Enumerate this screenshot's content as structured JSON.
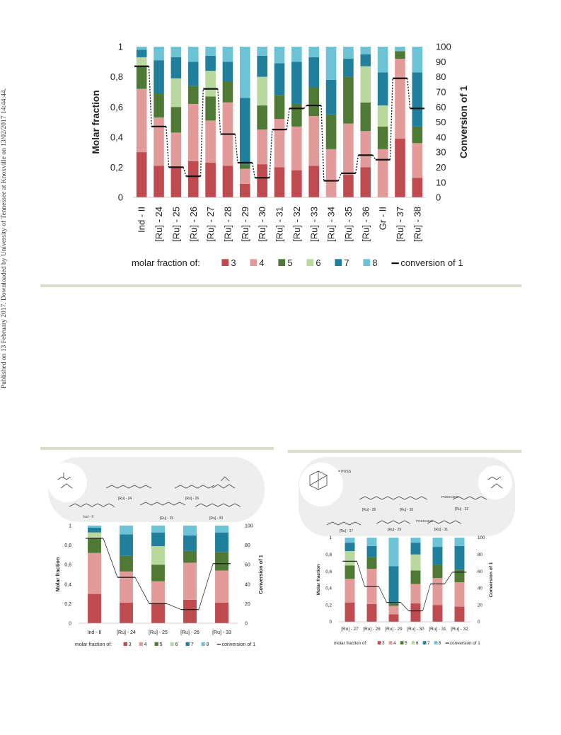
{
  "sidebar_text": "Published on 13 February 2017. Downloaded by University of Tennessee at Knoxville on 13/02/2017 14:44:44.",
  "colors": {
    "s3": "#bf4a4f",
    "s4": "#e39b99",
    "s5": "#4f7a35",
    "s6": "#b9d89e",
    "s7": "#1f7f9c",
    "s8": "#6cc3d6",
    "line": "#111111",
    "divider": "#dcdccd",
    "panel": "#eeeeee"
  },
  "inset_left": {
    "structure_labels": [
      "Ind - II",
      "[Ru] - 24",
      "[Ru] - 25",
      "[Ru] - 26",
      "[Ru] - 33"
    ]
  },
  "inset_right": {
    "structure_labels": [
      "[Ru] - 28",
      "[Ru] - 30",
      "[Ru] - 32",
      "[Ru] - 27",
      "[Ru] - 29",
      "[Ru] - 31"
    ],
    "poss_label": "= POSS",
    "poss_chain_1": "POSSC3H6",
    "poss_chain_2": "POSSC3H6"
  },
  "chart_data": [
    {
      "type": "bar",
      "stacked": true,
      "categories": [
        "Ind - II",
        "[Ru] - 24",
        "[Ru] - 25",
        "[Ru] - 26",
        "[Ru] - 27",
        "[Ru] - 28",
        "[Ru] - 29",
        "[Ru] - 30",
        "[Ru] - 31",
        "[Ru] - 32",
        "[Ru] - 33",
        "[Ru] - 34",
        "[Ru] - 35",
        "[Ru] - 36",
        "Gr - II",
        "[Ru] - 37",
        "[Ru] - 38"
      ],
      "series": [
        {
          "name": "3",
          "values": [
            0.3,
            0.21,
            0.2,
            0.24,
            0.23,
            0.21,
            0.09,
            0.22,
            0.2,
            0.18,
            0.21,
            0.0,
            0.15,
            0.2,
            0.0,
            0.39,
            0.13
          ]
        },
        {
          "name": "4",
          "values": [
            0.42,
            0.32,
            0.23,
            0.38,
            0.28,
            0.42,
            0.1,
            0.23,
            0.32,
            0.29,
            0.33,
            0.32,
            0.34,
            0.24,
            0.32,
            0.53,
            0.23
          ]
        },
        {
          "name": "5",
          "values": [
            0.15,
            0.16,
            0.17,
            0.12,
            0.16,
            0.14,
            0.03,
            0.16,
            0.16,
            0.15,
            0.19,
            0.23,
            0.31,
            0.19,
            0.15,
            0.05,
            0.11
          ]
        },
        {
          "name": "6",
          "values": [
            0.06,
            0.0,
            0.19,
            0.0,
            0.17,
            0.0,
            0.0,
            0.19,
            0.0,
            0.0,
            0.0,
            0.0,
            0.0,
            0.24,
            0.14,
            0.0,
            0.0
          ]
        },
        {
          "name": "7",
          "values": [
            0.05,
            0.22,
            0.14,
            0.16,
            0.1,
            0.13,
            0.44,
            0.14,
            0.21,
            0.28,
            0.2,
            0.23,
            0.12,
            0.08,
            0.22,
            0.0,
            0.36
          ]
        },
        {
          "name": "8",
          "values": [
            0.02,
            0.09,
            0.07,
            0.1,
            0.06,
            0.1,
            0.34,
            0.06,
            0.11,
            0.1,
            0.07,
            0.22,
            0.08,
            0.05,
            0.17,
            0.03,
            0.17
          ]
        }
      ],
      "line": {
        "name": "conversion of 1",
        "values": [
          87,
          47,
          20,
          14,
          72,
          42,
          23,
          13,
          45,
          59,
          61,
          11,
          16,
          28,
          25,
          79,
          59
        ]
      },
      "ylabel": "Molar fraction",
      "y2label": "Conversion of 1",
      "y_ticks": [
        "0",
        "0,2",
        "0,4",
        "0,6",
        "0,8",
        "1"
      ],
      "y2_ticks": [
        "0",
        "10",
        "20",
        "30",
        "40",
        "50",
        "60",
        "70",
        "80",
        "90",
        "100"
      ],
      "ylim": [
        0,
        1
      ],
      "y2lim": [
        0,
        100
      ],
      "legend_prefix": "molar fraction of:",
      "legend_line_label": "conversion of 1",
      "legend_position": "bottom"
    },
    {
      "type": "bar",
      "stacked": true,
      "categories": [
        "Ind - II",
        "[Ru] - 24",
        "[Ru] - 25",
        "[Ru] - 26",
        "[Ru] - 33"
      ],
      "series": [
        {
          "name": "3",
          "values": [
            0.3,
            0.21,
            0.2,
            0.24,
            0.21
          ]
        },
        {
          "name": "4",
          "values": [
            0.42,
            0.32,
            0.23,
            0.38,
            0.33
          ]
        },
        {
          "name": "5",
          "values": [
            0.15,
            0.16,
            0.17,
            0.12,
            0.19
          ]
        },
        {
          "name": "6",
          "values": [
            0.06,
            0.0,
            0.19,
            0.0,
            0.0
          ]
        },
        {
          "name": "7",
          "values": [
            0.05,
            0.22,
            0.14,
            0.16,
            0.2
          ]
        },
        {
          "name": "8",
          "values": [
            0.02,
            0.09,
            0.07,
            0.1,
            0.07
          ]
        }
      ],
      "line": {
        "name": "conversion of 1",
        "values": [
          87,
          47,
          20,
          14,
          61
        ]
      },
      "ylabel": "Molar fraction",
      "y2label": "Conversion of 1",
      "y_ticks": [
        "0",
        "0,2",
        "0,4",
        "0,6",
        "0,8",
        "1"
      ],
      "y2_ticks": [
        "0",
        "20",
        "40",
        "60",
        "80",
        "100"
      ],
      "ylim": [
        0,
        1
      ],
      "y2lim": [
        0,
        100
      ],
      "legend_prefix": "molar fraction of:",
      "legend_line_label": "conversion of 1",
      "legend_position": "bottom"
    },
    {
      "type": "bar",
      "stacked": true,
      "categories": [
        "[Ru] - 27",
        "[Ru] - 28",
        "[Ru] - 29",
        "[Ru] - 30",
        "[Ru] - 31",
        "[Ru] - 32"
      ],
      "series": [
        {
          "name": "3",
          "values": [
            0.23,
            0.21,
            0.09,
            0.22,
            0.2,
            0.18
          ]
        },
        {
          "name": "4",
          "values": [
            0.28,
            0.42,
            0.1,
            0.23,
            0.32,
            0.29
          ]
        },
        {
          "name": "5",
          "values": [
            0.16,
            0.14,
            0.03,
            0.16,
            0.16,
            0.15
          ]
        },
        {
          "name": "6",
          "values": [
            0.17,
            0.0,
            0.0,
            0.19,
            0.0,
            0.0
          ]
        },
        {
          "name": "7",
          "values": [
            0.1,
            0.13,
            0.44,
            0.14,
            0.21,
            0.28
          ]
        },
        {
          "name": "8",
          "values": [
            0.06,
            0.1,
            0.34,
            0.06,
            0.11,
            0.1
          ]
        }
      ],
      "line": {
        "name": "conversion of 1",
        "values": [
          72,
          42,
          23,
          13,
          45,
          59
        ]
      },
      "ylabel": "Molar fraction",
      "y2label": "Conversion of 1",
      "y_ticks": [
        "0",
        "0,2",
        "0,4",
        "0,6",
        "0,8",
        "1"
      ],
      "y2_ticks": [
        "0",
        "20",
        "40",
        "60",
        "80",
        "100"
      ],
      "ylim": [
        0,
        1
      ],
      "y2lim": [
        0,
        100
      ],
      "legend_prefix": "molar fraction of:",
      "legend_line_label": "conversion of 1",
      "legend_position": "bottom"
    }
  ]
}
